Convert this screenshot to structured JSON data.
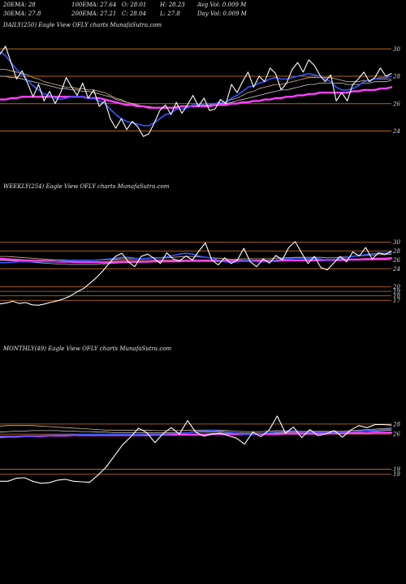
{
  "header": {
    "row1": [
      {
        "key": "ema20",
        "text": "20EMA: 28"
      },
      {
        "key": "ema100",
        "text": "100EMA: 27.64"
      },
      {
        "key": "open",
        "text": "O: 28.01"
      },
      {
        "key": "high",
        "text": "H: 28.23"
      },
      {
        "key": "avgvol",
        "text": "Avg Vol: 0.009 M"
      }
    ],
    "row2": [
      {
        "key": "ema30",
        "text": "30EMA: 27.8"
      },
      {
        "key": "ema200",
        "text": "200EMA: 27.21"
      },
      {
        "key": "close",
        "text": "C: 28.04"
      },
      {
        "key": "low",
        "text": "L: 27.8"
      },
      {
        "key": "dayvol",
        "text": "Day Vol: 0.009 M"
      }
    ]
  },
  "colors": {
    "price": "#ffffff",
    "ema_blue": "#3355ff",
    "ema_magenta": "#ff40ff",
    "ema_tan": "#d2b48c",
    "ema_gray": "#c8c8c8",
    "level_line": "#b5651d"
  },
  "chart_data": [
    {
      "type": "line",
      "label": "DAILY(250) Eagle  View  OFLY charts MunafaSutra.com",
      "yticks": [
        30,
        28,
        26,
        24
      ],
      "ylim": [
        23.2,
        31.2
      ],
      "levels": [
        30,
        28,
        26,
        24
      ],
      "series": [
        {
          "key": "price",
          "values": [
            29.6,
            30.2,
            29.0,
            27.8,
            28.4,
            27.5,
            26.5,
            27.4,
            26.2,
            26.9,
            26.0,
            26.8,
            27.9,
            27.2,
            26.6,
            27.5,
            26.4,
            27.0,
            25.8,
            26.2,
            24.9,
            24.2,
            24.9,
            24.1,
            24.7,
            24.3,
            23.6,
            23.8,
            24.6,
            25.5,
            25.9,
            25.2,
            26.1,
            25.3,
            25.9,
            26.6,
            25.8,
            26.4,
            25.5,
            25.6,
            26.3,
            26.0,
            27.4,
            26.8,
            27.6,
            28.3,
            27.2,
            28.0,
            27.6,
            28.6,
            28.2,
            27.0,
            27.5,
            28.5,
            29.0,
            28.3,
            29.2,
            28.8,
            28.1,
            27.6,
            28.1,
            26.2,
            26.8,
            26.2,
            27.4,
            27.8,
            28.3,
            27.6,
            27.9,
            28.6,
            28.0,
            28.2
          ]
        },
        {
          "key": "ema_blue",
          "values": [
            29.8,
            29.5,
            29.0,
            28.5,
            28.1,
            27.7,
            27.3,
            27.0,
            26.7,
            26.6,
            26.4,
            26.3,
            26.4,
            26.5,
            26.5,
            26.5,
            26.4,
            26.4,
            26.2,
            26.0,
            25.6,
            25.2,
            24.9,
            24.7,
            24.6,
            24.5,
            24.4,
            24.4,
            24.6,
            24.9,
            25.2,
            25.3,
            25.6,
            25.6,
            25.7,
            25.9,
            25.9,
            26.0,
            26.0,
            26.0,
            26.1,
            26.1,
            26.4,
            26.6,
            26.9,
            27.2,
            27.3,
            27.5,
            27.6,
            27.8,
            27.9,
            27.8,
            27.8,
            27.9,
            28.0,
            28.1,
            28.2,
            28.1,
            28.0,
            27.8,
            27.6,
            27.2,
            27.0,
            27.0,
            27.1,
            27.3,
            27.6,
            27.7,
            27.8,
            27.9,
            27.9,
            28.0
          ]
        },
        {
          "key": "ema_tan",
          "values": [
            28.5,
            28.5,
            28.4,
            28.3,
            28.2,
            28.1,
            27.9,
            27.8,
            27.6,
            27.5,
            27.4,
            27.3,
            27.2,
            27.2,
            27.1,
            27.1,
            27.0,
            27.0,
            26.9,
            26.8,
            26.6,
            26.4,
            26.3,
            26.1,
            26.0,
            25.9,
            25.8,
            25.7,
            25.7,
            25.7,
            25.7,
            25.7,
            25.8,
            25.8,
            25.8,
            25.9,
            25.9,
            26.0,
            26.0,
            26.0,
            26.1,
            26.1,
            26.3,
            26.4,
            26.6,
            26.8,
            26.9,
            27.1,
            27.2,
            27.3,
            27.4,
            27.4,
            27.5,
            27.6,
            27.7,
            27.8,
            27.9,
            27.9,
            27.9,
            27.9,
            27.9,
            27.8,
            27.7,
            27.6,
            27.6,
            27.6,
            27.7,
            27.7,
            27.8,
            27.8,
            27.8,
            27.8
          ]
        },
        {
          "key": "ema_gray",
          "values": [
            28.0,
            28.0,
            27.9,
            27.9,
            27.8,
            27.7,
            27.6,
            27.5,
            27.4,
            27.3,
            27.2,
            27.1,
            27.1,
            27.0,
            27.0,
            26.9,
            26.9,
            26.8,
            26.7,
            26.6,
            26.5,
            26.3,
            26.2,
            26.1,
            26.0,
            25.9,
            25.8,
            25.8,
            25.7,
            25.7,
            25.7,
            25.7,
            25.8,
            25.8,
            25.8,
            25.8,
            25.9,
            25.9,
            25.9,
            26.0,
            26.0,
            26.0,
            26.1,
            26.2,
            26.3,
            26.4,
            26.5,
            26.6,
            26.7,
            26.8,
            26.9,
            27.0,
            27.0,
            27.1,
            27.2,
            27.3,
            27.4,
            27.4,
            27.5,
            27.5,
            27.5,
            27.5,
            27.5,
            27.4,
            27.4,
            27.4,
            27.5,
            27.5,
            27.6,
            27.6,
            27.6,
            27.7
          ]
        },
        {
          "key": "ema_magenta",
          "values": [
            26.3,
            26.3,
            26.4,
            26.4,
            26.5,
            26.5,
            26.5,
            26.5,
            26.5,
            26.5,
            26.5,
            26.5,
            26.5,
            26.5,
            26.5,
            26.5,
            26.4,
            26.4,
            26.4,
            26.3,
            26.2,
            26.1,
            26.0,
            25.9,
            25.9,
            25.8,
            25.8,
            25.7,
            25.7,
            25.7,
            25.7,
            25.7,
            25.7,
            25.8,
            25.8,
            25.8,
            25.8,
            25.8,
            25.8,
            25.9,
            25.9,
            25.9,
            26.0,
            26.0,
            26.1,
            26.1,
            26.2,
            26.2,
            26.3,
            26.3,
            26.4,
            26.4,
            26.5,
            26.5,
            26.6,
            26.6,
            26.7,
            26.7,
            26.8,
            26.8,
            26.8,
            26.8,
            26.8,
            26.8,
            26.9,
            26.9,
            27.0,
            27.0,
            27.0,
            27.1,
            27.1,
            27.2
          ]
        }
      ]
    },
    {
      "type": "line",
      "label": "WEEKLY(254) Eagle  View  OFLY charts MunafaSutra.com",
      "yticks": [
        30,
        28,
        26,
        24,
        20,
        19,
        18,
        17
      ],
      "ylim": [
        15.6,
        30.8
      ],
      "levels": [
        30,
        28,
        26,
        24,
        20,
        19,
        18,
        17
      ],
      "series": [
        {
          "key": "price",
          "values": [
            16.2,
            16.4,
            16.8,
            16.3,
            16.5,
            16.0,
            15.9,
            16.2,
            16.6,
            16.9,
            17.4,
            18.0,
            18.9,
            19.6,
            20.8,
            22.0,
            23.5,
            25.2,
            26.8,
            27.5,
            25.6,
            24.5,
            26.8,
            27.3,
            26.4,
            25.2,
            27.6,
            26.2,
            25.8,
            26.9,
            26.0,
            28.0,
            29.8,
            26.0,
            24.9,
            26.5,
            25.2,
            26.0,
            28.6,
            25.6,
            24.5,
            26.2,
            25.3,
            27.0,
            26.0,
            28.8,
            30.1,
            27.6,
            25.2,
            26.8,
            24.3,
            23.8,
            25.3,
            26.8,
            25.6,
            27.8,
            26.9,
            28.8,
            26.2,
            27.6,
            27.2,
            28.0
          ]
        },
        {
          "key": "ema_blue",
          "values": [
            25.4,
            25.4,
            25.5,
            25.6,
            25.6,
            25.6,
            25.6,
            25.6,
            25.6,
            25.7,
            25.8,
            25.9,
            25.9,
            25.9,
            25.9,
            26.0,
            26.1,
            26.2,
            26.4,
            26.6,
            26.6,
            26.4,
            26.3,
            26.4,
            26.5,
            26.5,
            26.7,
            27.0,
            27.3,
            27.5,
            27.3,
            26.9,
            26.6,
            26.4,
            26.0,
            25.6,
            25.5,
            25.6,
            25.8,
            25.8,
            25.6,
            25.6,
            25.7,
            26.0,
            26.2,
            26.3,
            26.4,
            26.4,
            26.3,
            26.4,
            26.2,
            26.0,
            26.1,
            26.3,
            26.6,
            26.8,
            27.0,
            27.2,
            27.4,
            27.5,
            27.5,
            27.6
          ]
        },
        {
          "key": "ema_tan",
          "values": [
            26.8,
            26.8,
            26.7,
            26.6,
            26.5,
            26.4,
            26.3,
            26.2,
            26.1,
            26.0,
            26.0,
            25.9,
            25.9,
            25.9,
            25.9,
            25.9,
            26.0,
            26.1,
            26.2,
            26.3,
            26.3,
            26.3,
            26.3,
            26.3,
            26.4,
            26.4,
            26.5,
            26.6,
            26.7,
            26.8,
            26.8,
            26.7,
            26.6,
            26.5,
            26.4,
            26.3,
            26.2,
            26.2,
            26.3,
            26.3,
            26.3,
            26.3,
            26.3,
            26.4,
            26.5,
            26.5,
            26.6,
            26.6,
            26.6,
            26.6,
            26.6,
            26.5,
            26.5,
            26.6,
            26.7,
            26.8,
            26.9,
            27.0,
            27.1,
            27.2,
            27.2,
            27.3
          ]
        },
        {
          "key": "ema_gray",
          "values": [
            25.9,
            25.9,
            25.8,
            25.7,
            25.6,
            25.5,
            25.4,
            25.3,
            25.2,
            25.1,
            25.1,
            25.0,
            25.0,
            25.0,
            25.0,
            25.0,
            25.1,
            25.2,
            25.3,
            25.4,
            25.4,
            25.5,
            25.5,
            25.6,
            25.6,
            25.6,
            25.7,
            25.7,
            25.8,
            25.8,
            25.8,
            25.8,
            25.8,
            25.8,
            25.7,
            25.7,
            25.7,
            25.7,
            25.7,
            25.7,
            25.7,
            25.7,
            25.7,
            25.8,
            25.8,
            25.8,
            25.9,
            25.9,
            25.9,
            25.9,
            25.9,
            25.9,
            25.9,
            26.0,
            26.0,
            26.1,
            26.1,
            26.2,
            26.2,
            26.3,
            26.3,
            26.4
          ]
        },
        {
          "key": "ema_magenta",
          "values": [
            26.3,
            26.2,
            26.1,
            26.0,
            25.9,
            25.8,
            25.8,
            25.7,
            25.7,
            25.6,
            25.6,
            25.6,
            25.5,
            25.5,
            25.5,
            25.5,
            25.5,
            25.5,
            25.6,
            25.6,
            25.6,
            25.6,
            25.6,
            25.6,
            25.7,
            25.7,
            25.7,
            25.7,
            25.7,
            25.8,
            25.8,
            25.8,
            25.8,
            25.8,
            25.8,
            25.8,
            25.8,
            25.8,
            25.8,
            25.8,
            25.8,
            25.8,
            25.8,
            25.8,
            25.9,
            25.9,
            25.9,
            25.9,
            25.9,
            25.9,
            26.0,
            26.0,
            26.0,
            26.0,
            26.1,
            26.1,
            26.1,
            26.2,
            26.2,
            26.3,
            26.3,
            26.4
          ]
        }
      ]
    },
    {
      "type": "line",
      "label": "MONTHLY(49) Eagle  View  OFLY charts MunafaSutra.com",
      "yticks": [
        28,
        26,
        19,
        18
      ],
      "ylim": [
        15.2,
        30.4
      ],
      "levels": [
        28,
        26,
        19,
        18
      ],
      "series": [
        {
          "key": "price",
          "values": [
            16.6,
            16.6,
            17.2,
            17.3,
            16.6,
            16.2,
            16.3,
            16.8,
            17.0,
            16.6,
            16.5,
            16.4,
            17.8,
            19.4,
            21.6,
            23.8,
            25.4,
            27.2,
            26.3,
            24.3,
            26.1,
            27.3,
            26.0,
            28.7,
            26.4,
            25.6,
            26.0,
            26.2,
            25.7,
            25.2,
            24.0,
            26.4,
            25.5,
            26.8,
            29.6,
            26.2,
            27.4,
            25.3,
            26.9,
            25.7,
            26.1,
            26.7,
            25.4,
            26.8,
            27.7,
            27.3,
            27.9,
            27.9,
            27.8
          ]
        },
        {
          "key": "ema_blue",
          "values": [
            25.6,
            25.6,
            25.6,
            25.6,
            25.6,
            25.7,
            25.7,
            25.8,
            25.8,
            25.8,
            25.9,
            25.9,
            25.9,
            25.9,
            25.9,
            25.9,
            25.9,
            25.9,
            26.0,
            26.0,
            26.0,
            26.1,
            26.2,
            26.3,
            26.5,
            26.6,
            26.7,
            26.6,
            26.4,
            26.2,
            26.0,
            26.0,
            26.1,
            26.3,
            26.5,
            26.6,
            26.6,
            26.5,
            26.4,
            26.4,
            26.4,
            26.4,
            26.4,
            26.5,
            26.6,
            26.7,
            26.8,
            26.9,
            27.0
          ]
        },
        {
          "key": "ema_tan",
          "values": [
            27.6,
            27.7,
            27.7,
            27.7,
            27.7,
            27.6,
            27.5,
            27.4,
            27.3,
            27.2,
            27.1,
            27.0,
            26.9,
            26.8,
            26.8,
            26.8,
            26.8,
            26.8,
            26.8,
            26.7,
            26.7,
            26.7,
            26.7,
            26.8,
            26.8,
            26.8,
            26.8,
            26.8,
            26.7,
            26.6,
            26.5,
            26.5,
            26.5,
            26.6,
            26.7,
            26.7,
            26.7,
            26.6,
            26.6,
            26.6,
            26.6,
            26.6,
            26.6,
            26.7,
            26.8,
            26.9,
            27.0,
            27.1,
            27.2
          ]
        },
        {
          "key": "ema_gray",
          "values": [
            26.4,
            26.5,
            26.6,
            26.6,
            26.7,
            26.7,
            26.7,
            26.7,
            26.6,
            26.6,
            26.5,
            26.5,
            26.4,
            26.4,
            26.3,
            26.3,
            26.3,
            26.3,
            26.3,
            26.3,
            26.3,
            26.3,
            26.3,
            26.3,
            26.4,
            26.4,
            26.4,
            26.4,
            26.3,
            26.3,
            26.2,
            26.2,
            26.2,
            26.3,
            26.3,
            26.4,
            26.4,
            26.4,
            26.4,
            26.4,
            26.4,
            26.4,
            26.4,
            26.5,
            26.5,
            26.6,
            26.6,
            26.7,
            26.8
          ]
        },
        {
          "key": "ema_magenta",
          "values": [
            25.4,
            25.5,
            25.5,
            25.6,
            25.6,
            25.6,
            25.7,
            25.7,
            25.7,
            25.8,
            25.8,
            25.8,
            25.8,
            25.8,
            25.8,
            25.8,
            25.8,
            25.8,
            25.8,
            25.9,
            25.9,
            25.9,
            25.9,
            25.9,
            25.9,
            25.9,
            26.0,
            26.0,
            26.0,
            26.0,
            26.0,
            26.0,
            26.0,
            26.0,
            26.0,
            26.1,
            26.1,
            26.1,
            26.1,
            26.1,
            26.1,
            26.2,
            26.2,
            26.2,
            26.2,
            26.2,
            26.3,
            26.3,
            26.3
          ]
        }
      ]
    }
  ]
}
